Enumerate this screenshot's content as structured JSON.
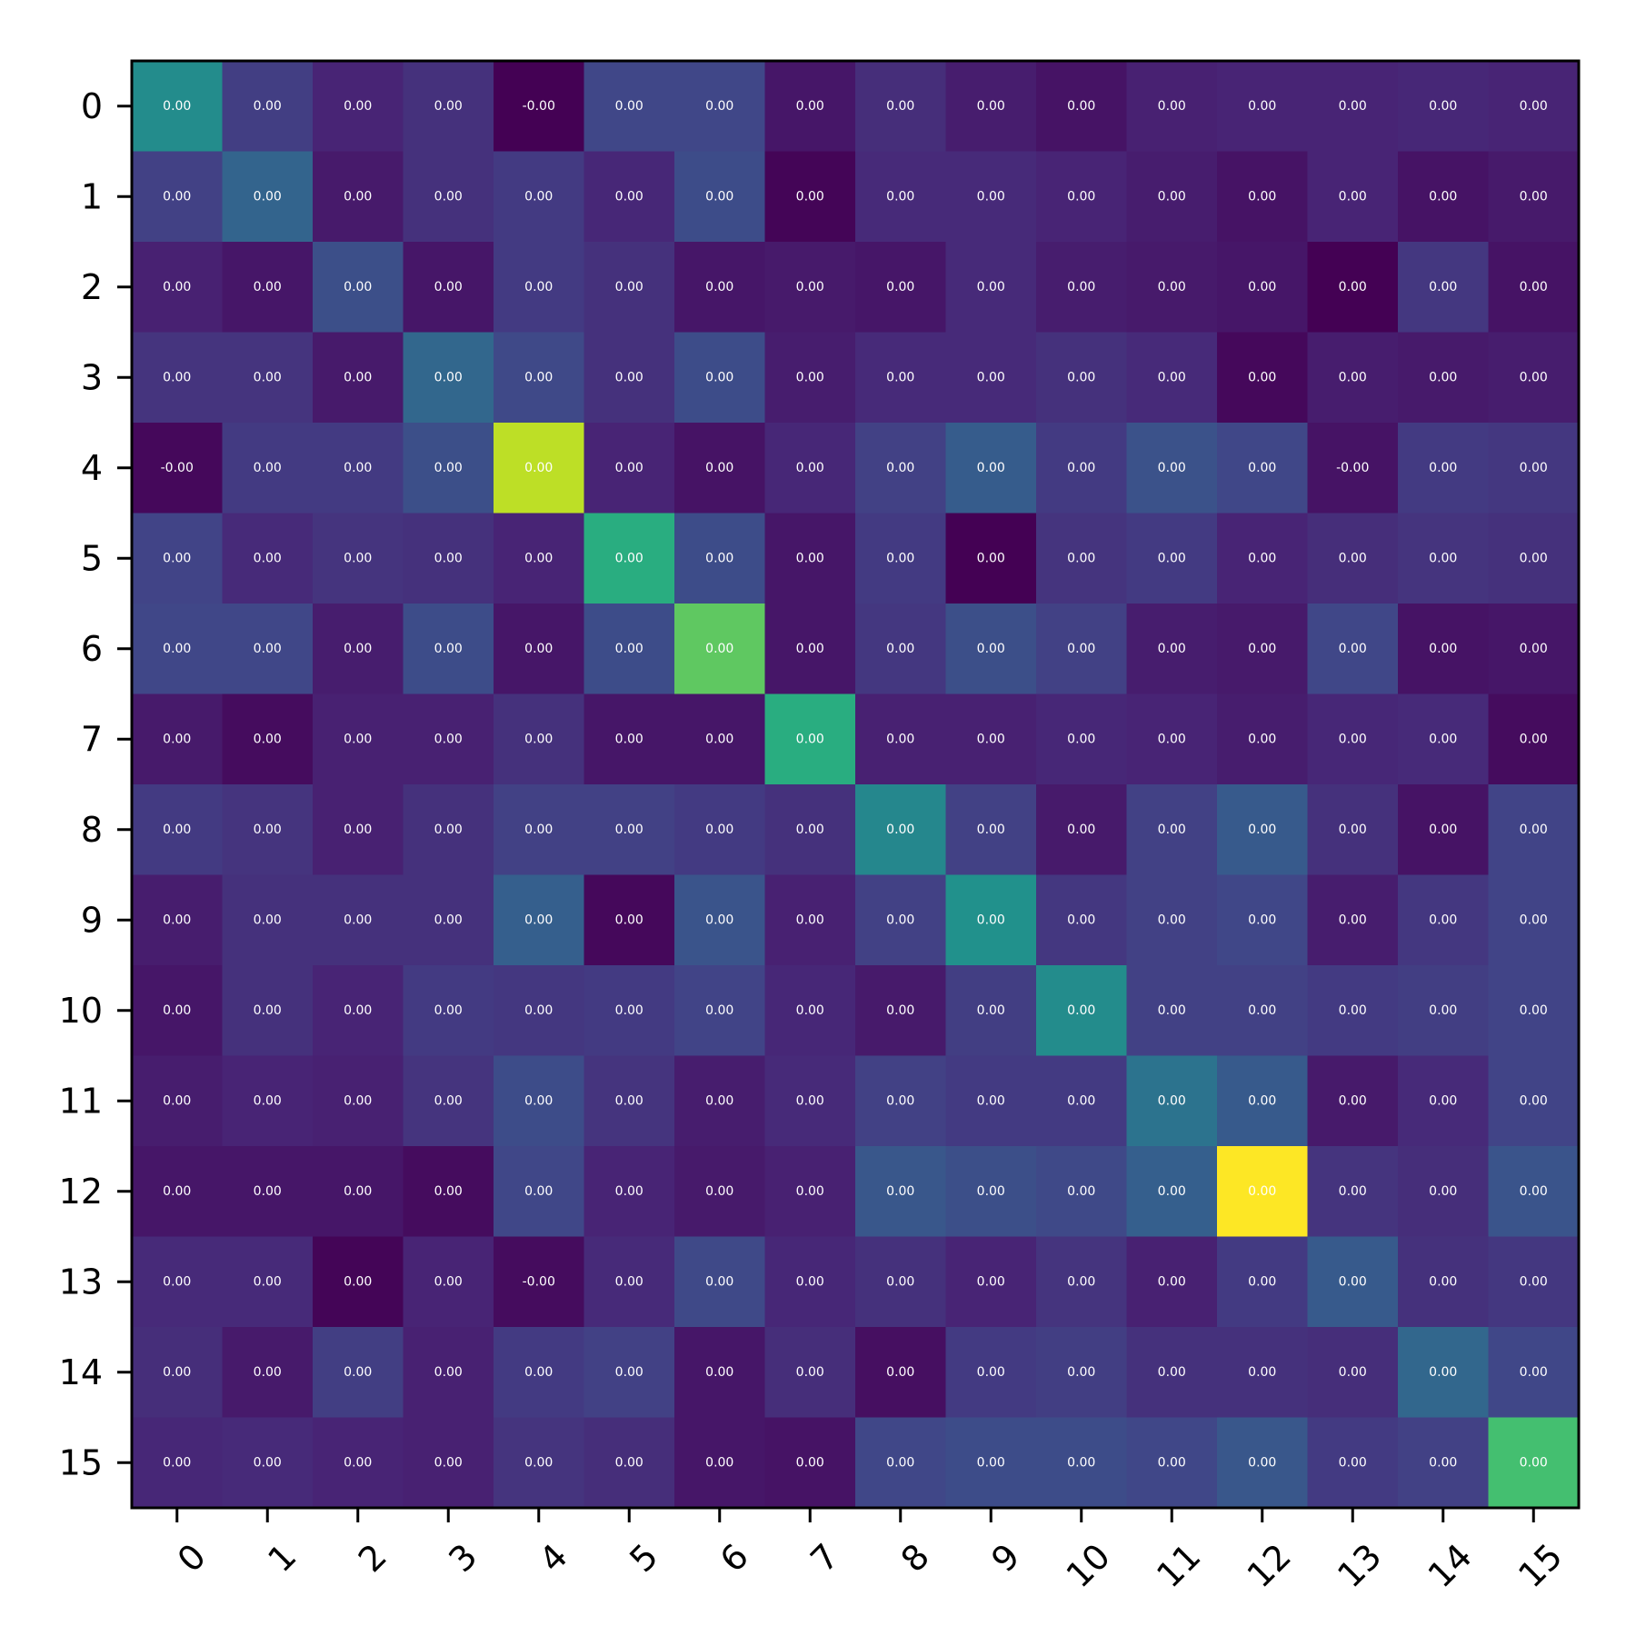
{
  "chart_data": {
    "type": "heatmap",
    "colormap": "viridis",
    "title": "",
    "xlabel": "",
    "ylabel": "",
    "x_ticks": [
      "0",
      "1",
      "2",
      "3",
      "4",
      "5",
      "6",
      "7",
      "8",
      "9",
      "10",
      "11",
      "12",
      "13",
      "14",
      "15"
    ],
    "y_ticks": [
      "0",
      "1",
      "2",
      "3",
      "4",
      "5",
      "6",
      "7",
      "8",
      "9",
      "10",
      "11",
      "12",
      "13",
      "14",
      "15"
    ],
    "intensity": [
      [
        0.48,
        0.18,
        0.1,
        0.14,
        0.0,
        0.21,
        0.21,
        0.06,
        0.13,
        0.08,
        0.05,
        0.09,
        0.1,
        0.1,
        0.11,
        0.1
      ],
      [
        0.19,
        0.32,
        0.07,
        0.14,
        0.17,
        0.11,
        0.23,
        0.01,
        0.12,
        0.12,
        0.1,
        0.08,
        0.05,
        0.1,
        0.05,
        0.07
      ],
      [
        0.09,
        0.06,
        0.24,
        0.06,
        0.17,
        0.14,
        0.06,
        0.07,
        0.06,
        0.12,
        0.08,
        0.07,
        0.06,
        0.0,
        0.16,
        0.05
      ],
      [
        0.15,
        0.15,
        0.07,
        0.33,
        0.22,
        0.14,
        0.23,
        0.08,
        0.12,
        0.12,
        0.14,
        0.12,
        0.02,
        0.08,
        0.07,
        0.08
      ],
      [
        0.02,
        0.17,
        0.17,
        0.24,
        0.9,
        0.1,
        0.05,
        0.11,
        0.19,
        0.29,
        0.17,
        0.25,
        0.21,
        0.05,
        0.17,
        0.16
      ],
      [
        0.2,
        0.12,
        0.15,
        0.14,
        0.1,
        0.62,
        0.23,
        0.06,
        0.17,
        0.0,
        0.15,
        0.17,
        0.1,
        0.13,
        0.15,
        0.14
      ],
      [
        0.21,
        0.21,
        0.08,
        0.23,
        0.06,
        0.23,
        0.75,
        0.06,
        0.16,
        0.24,
        0.19,
        0.08,
        0.07,
        0.21,
        0.05,
        0.06
      ],
      [
        0.07,
        0.03,
        0.09,
        0.09,
        0.14,
        0.06,
        0.06,
        0.62,
        0.09,
        0.09,
        0.11,
        0.1,
        0.08,
        0.11,
        0.12,
        0.03
      ],
      [
        0.17,
        0.15,
        0.09,
        0.14,
        0.19,
        0.19,
        0.17,
        0.14,
        0.46,
        0.19,
        0.07,
        0.19,
        0.28,
        0.14,
        0.05,
        0.2
      ],
      [
        0.08,
        0.14,
        0.14,
        0.14,
        0.3,
        0.02,
        0.26,
        0.09,
        0.19,
        0.5,
        0.16,
        0.19,
        0.21,
        0.08,
        0.16,
        0.2
      ],
      [
        0.06,
        0.14,
        0.1,
        0.17,
        0.16,
        0.17,
        0.2,
        0.11,
        0.07,
        0.18,
        0.48,
        0.19,
        0.19,
        0.17,
        0.18,
        0.2
      ],
      [
        0.08,
        0.1,
        0.09,
        0.15,
        0.23,
        0.15,
        0.08,
        0.12,
        0.19,
        0.17,
        0.17,
        0.38,
        0.28,
        0.07,
        0.12,
        0.2
      ],
      [
        0.06,
        0.06,
        0.06,
        0.03,
        0.21,
        0.1,
        0.07,
        0.09,
        0.27,
        0.24,
        0.22,
        0.3,
        1.0,
        0.15,
        0.13,
        0.26
      ],
      [
        0.12,
        0.12,
        0.01,
        0.1,
        0.03,
        0.12,
        0.22,
        0.11,
        0.14,
        0.1,
        0.15,
        0.09,
        0.17,
        0.28,
        0.14,
        0.16
      ],
      [
        0.13,
        0.07,
        0.18,
        0.09,
        0.17,
        0.19,
        0.06,
        0.13,
        0.04,
        0.17,
        0.18,
        0.14,
        0.14,
        0.13,
        0.33,
        0.21
      ],
      [
        0.11,
        0.12,
        0.1,
        0.09,
        0.15,
        0.13,
        0.06,
        0.05,
        0.21,
        0.23,
        0.23,
        0.21,
        0.27,
        0.17,
        0.19,
        0.7
      ]
    ],
    "cell_labels": [
      [
        "0.00",
        "0.00",
        "0.00",
        "0.00",
        "-0.00",
        "0.00",
        "0.00",
        "0.00",
        "0.00",
        "0.00",
        "0.00",
        "0.00",
        "0.00",
        "0.00",
        "0.00",
        "0.00"
      ],
      [
        "0.00",
        "0.00",
        "0.00",
        "0.00",
        "0.00",
        "0.00",
        "0.00",
        "0.00",
        "0.00",
        "0.00",
        "0.00",
        "0.00",
        "0.00",
        "0.00",
        "0.00",
        "0.00"
      ],
      [
        "0.00",
        "0.00",
        "0.00",
        "0.00",
        "0.00",
        "0.00",
        "0.00",
        "0.00",
        "0.00",
        "0.00",
        "0.00",
        "0.00",
        "0.00",
        "0.00",
        "0.00",
        "0.00"
      ],
      [
        "0.00",
        "0.00",
        "0.00",
        "0.00",
        "0.00",
        "0.00",
        "0.00",
        "0.00",
        "0.00",
        "0.00",
        "0.00",
        "0.00",
        "0.00",
        "0.00",
        "0.00",
        "0.00"
      ],
      [
        "-0.00",
        "0.00",
        "0.00",
        "0.00",
        "0.00",
        "0.00",
        "0.00",
        "0.00",
        "0.00",
        "0.00",
        "0.00",
        "0.00",
        "0.00",
        "-0.00",
        "0.00",
        "0.00"
      ],
      [
        "0.00",
        "0.00",
        "0.00",
        "0.00",
        "0.00",
        "0.00",
        "0.00",
        "0.00",
        "0.00",
        "0.00",
        "0.00",
        "0.00",
        "0.00",
        "0.00",
        "0.00",
        "0.00"
      ],
      [
        "0.00",
        "0.00",
        "0.00",
        "0.00",
        "0.00",
        "0.00",
        "0.00",
        "0.00",
        "0.00",
        "0.00",
        "0.00",
        "0.00",
        "0.00",
        "0.00",
        "0.00",
        "0.00"
      ],
      [
        "0.00",
        "0.00",
        "0.00",
        "0.00",
        "0.00",
        "0.00",
        "0.00",
        "0.00",
        "0.00",
        "0.00",
        "0.00",
        "0.00",
        "0.00",
        "0.00",
        "0.00",
        "0.00"
      ],
      [
        "0.00",
        "0.00",
        "0.00",
        "0.00",
        "0.00",
        "0.00",
        "0.00",
        "0.00",
        "0.00",
        "0.00",
        "0.00",
        "0.00",
        "0.00",
        "0.00",
        "0.00",
        "0.00"
      ],
      [
        "0.00",
        "0.00",
        "0.00",
        "0.00",
        "0.00",
        "0.00",
        "0.00",
        "0.00",
        "0.00",
        "0.00",
        "0.00",
        "0.00",
        "0.00",
        "0.00",
        "0.00",
        "0.00"
      ],
      [
        "0.00",
        "0.00",
        "0.00",
        "0.00",
        "0.00",
        "0.00",
        "0.00",
        "0.00",
        "0.00",
        "0.00",
        "0.00",
        "0.00",
        "0.00",
        "0.00",
        "0.00",
        "0.00"
      ],
      [
        "0.00",
        "0.00",
        "0.00",
        "0.00",
        "0.00",
        "0.00",
        "0.00",
        "0.00",
        "0.00",
        "0.00",
        "0.00",
        "0.00",
        "0.00",
        "0.00",
        "0.00",
        "0.00"
      ],
      [
        "0.00",
        "0.00",
        "0.00",
        "0.00",
        "0.00",
        "0.00",
        "0.00",
        "0.00",
        "0.00",
        "0.00",
        "0.00",
        "0.00",
        "0.00",
        "0.00",
        "0.00",
        "0.00"
      ],
      [
        "0.00",
        "0.00",
        "0.00",
        "0.00",
        "-0.00",
        "0.00",
        "0.00",
        "0.00",
        "0.00",
        "0.00",
        "0.00",
        "0.00",
        "0.00",
        "0.00",
        "0.00",
        "0.00"
      ],
      [
        "0.00",
        "0.00",
        "0.00",
        "0.00",
        "0.00",
        "0.00",
        "0.00",
        "0.00",
        "0.00",
        "0.00",
        "0.00",
        "0.00",
        "0.00",
        "0.00",
        "0.00",
        "0.00"
      ],
      [
        "0.00",
        "0.00",
        "0.00",
        "0.00",
        "0.00",
        "0.00",
        "0.00",
        "0.00",
        "0.00",
        "0.00",
        "0.00",
        "0.00",
        "0.00",
        "0.00",
        "0.00",
        "0.00"
      ]
    ],
    "grid": false,
    "legend": "none"
  }
}
